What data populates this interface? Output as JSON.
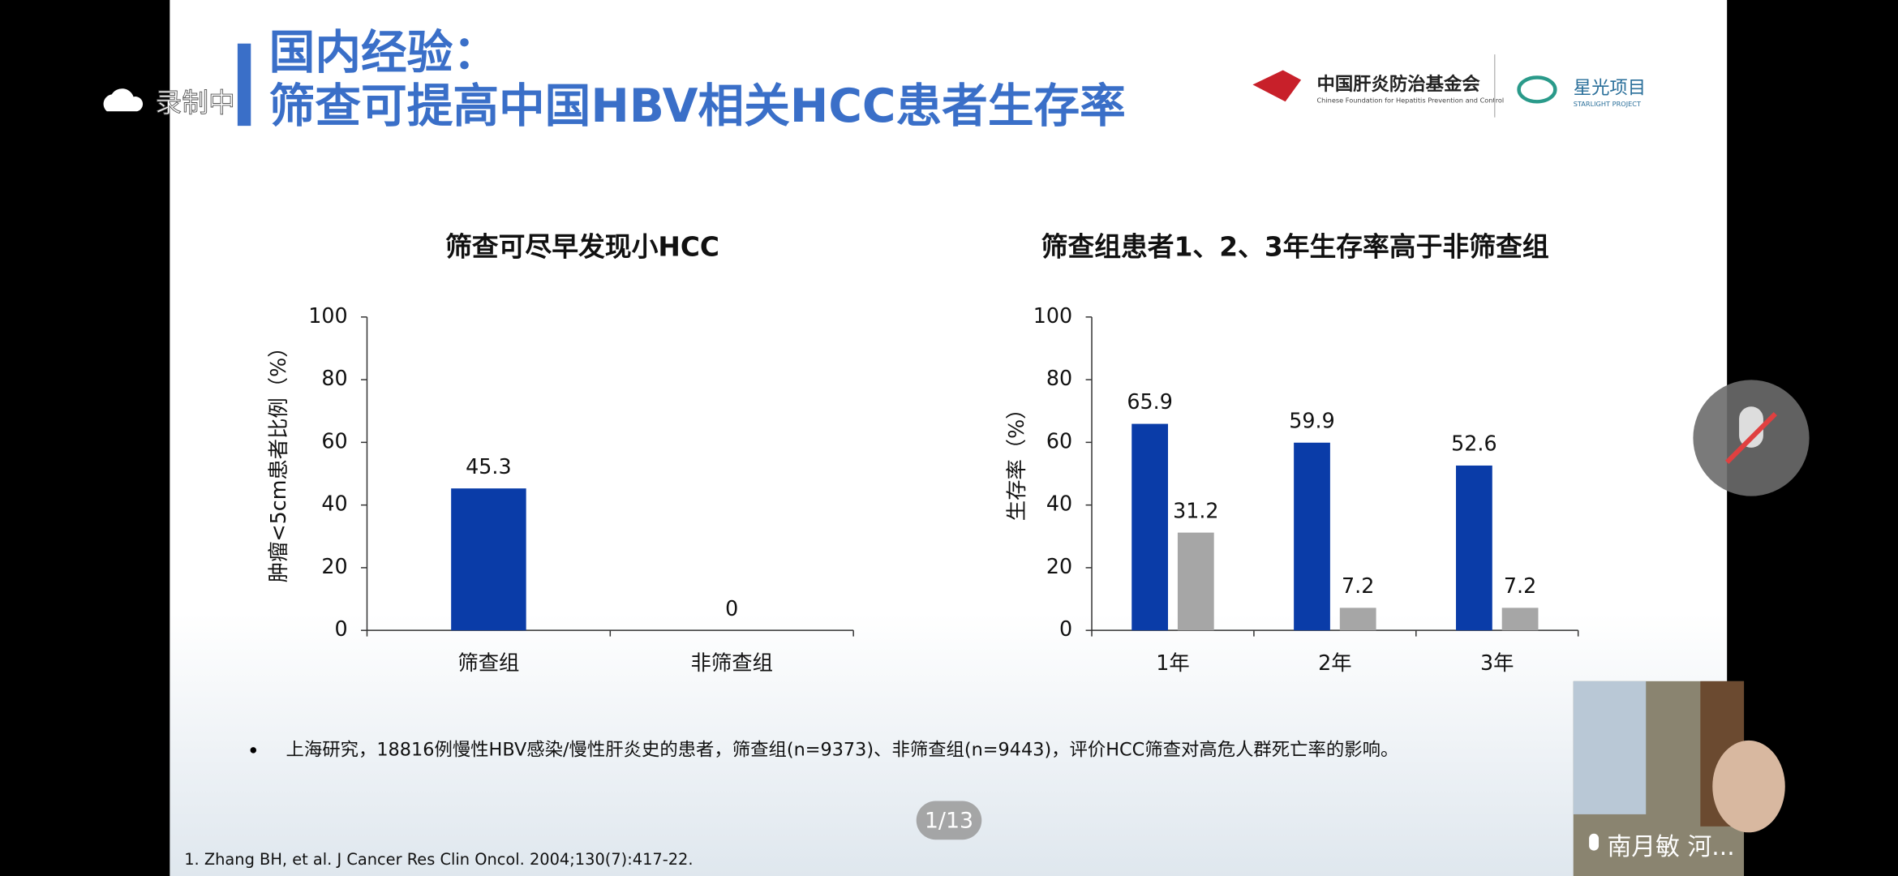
{
  "recording": "录制中",
  "slide": {
    "title_line1": "国内经验：",
    "title_line2": "筛查可提高中国HBV相关HCC患者生存率",
    "logo1": "中国肝炎防治基金会",
    "logo1_en": "Chinese Foundation for Hepatitis Prevention and Control",
    "logo2": "星光项目",
    "logo2_en": "STARLIGHT PROJECT",
    "bullet": "上海研究，18816例慢性HBV感染/慢性肝炎史的患者，筛查组(n=9373)、非筛查组(n=9443)，评价HCC筛查对高危人群死亡率的影响。",
    "reference": "1.   Zhang BH, et al. J Cancer Res Clin Oncol. 2004;130(7):417-22."
  },
  "chart_data": [
    {
      "type": "bar",
      "title": "筛查可尽早发现小HCC",
      "y_label": "肿瘤<5cm患者比例（%）",
      "categories": [
        "筛查组",
        "非筛查组"
      ],
      "values": [
        45.3,
        0
      ],
      "color": "#0a3ca8",
      "ylim": [
        0,
        100
      ],
      "yticks": [
        0,
        20,
        40,
        60,
        80,
        100
      ]
    },
    {
      "type": "grouped_bar",
      "title": "筛查组患者1、2、3年生存率高于非筛查组",
      "y_label": "生存率（%）",
      "categories": [
        "1年",
        "2年",
        "3年"
      ],
      "series": [
        {
          "color": "#0a3ca8",
          "values": [
            65.9,
            59.9,
            52.6
          ]
        },
        {
          "color": "#a6a6a6",
          "values": [
            31.2,
            7.2,
            7.2
          ]
        }
      ],
      "ylim": [
        0,
        100
      ],
      "yticks": [
        0,
        20,
        40,
        60,
        80,
        100
      ]
    }
  ],
  "page_indicator": "1/13",
  "participant": "南月敏 河..."
}
